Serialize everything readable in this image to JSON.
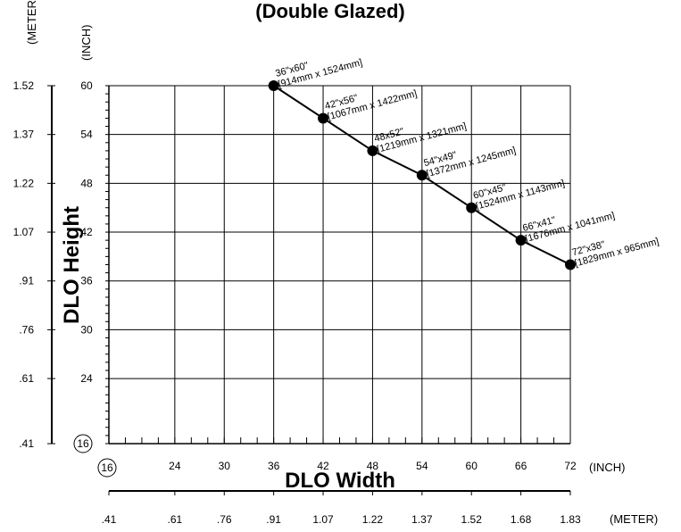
{
  "chart_data": {
    "type": "line",
    "title": "(Double Glazed)",
    "xlabel": "DLO Width",
    "ylabel": "DLO Height",
    "x_unit_primary": "(INCH)",
    "x_unit_secondary": "(METER)",
    "y_unit_primary": "(INCH)",
    "y_unit_secondary": "(METER)",
    "xlim": [
      16,
      72
    ],
    "ylim": [
      16,
      60
    ],
    "grid": true,
    "x_ticks": [
      {
        "label": "16",
        "circled": true
      },
      {
        "label": "24"
      },
      {
        "label": "30"
      },
      {
        "label": "36"
      },
      {
        "label": "42"
      },
      {
        "label": "48"
      },
      {
        "label": "54"
      },
      {
        "label": "60"
      },
      {
        "label": "66"
      },
      {
        "label": "72"
      }
    ],
    "x_ticks_values": [
      16,
      24,
      30,
      36,
      42,
      48,
      54,
      60,
      66,
      72
    ],
    "y_ticks": [
      {
        "label": "16",
        "circled": true
      },
      {
        "label": "24"
      },
      {
        "label": "30"
      },
      {
        "label": "36"
      },
      {
        "label": "42"
      },
      {
        "label": "48"
      },
      {
        "label": "54"
      },
      {
        "label": "60"
      }
    ],
    "y_ticks_values": [
      16,
      24,
      30,
      36,
      42,
      48,
      54,
      60
    ],
    "x_meter_labels": [
      ".41",
      ".61",
      ".76",
      ".91",
      "1.07",
      "1.22",
      "1.37",
      "1.52",
      "1.68",
      "1.83"
    ],
    "y_meter_labels": [
      "1.52",
      "1.37",
      "1.22",
      "1.07",
      ".91",
      ".76",
      ".61",
      ".41"
    ],
    "series": [
      {
        "points": [
          {
            "x": 36,
            "y": 60,
            "label1": "36\"x60\"",
            "label2": "[914mm x 1524mm]"
          },
          {
            "x": 42,
            "y": 56,
            "label1": "42\"x56\"",
            "label2": "[1067mm x 1422mm]"
          },
          {
            "x": 48,
            "y": 52,
            "label1": "48x52\"",
            "label2": "[1219mm x 1321mm]"
          },
          {
            "x": 54,
            "y": 49,
            "label1": "54\"x49\"",
            "label2": "[1372mm x 1245mm]"
          },
          {
            "x": 60,
            "y": 45,
            "label1": "60\"x45\"",
            "label2": "[1524mm x 1143mm]"
          },
          {
            "x": 66,
            "y": 41,
            "label1": "66\"x41\"",
            "label2": "[1676mm x 1041mm]"
          },
          {
            "x": 72,
            "y": 38,
            "label1": "72\"x38\"",
            "label2": "[1829mm x 965mm]"
          }
        ]
      }
    ],
    "colors": {
      "line": "#000000",
      "grid": "#000000",
      "background": "#ffffff"
    }
  }
}
